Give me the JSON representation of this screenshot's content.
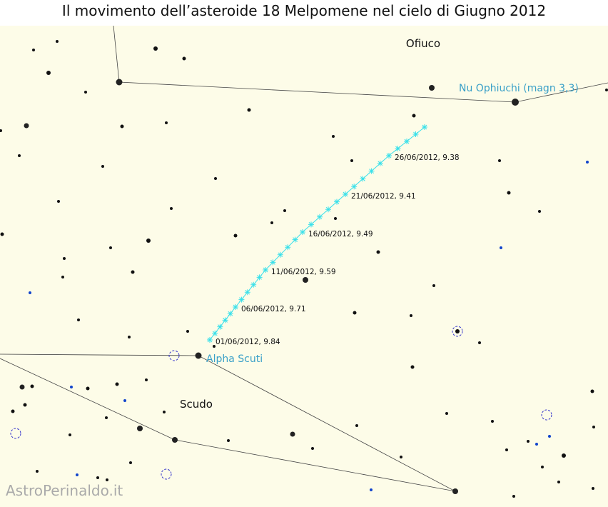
{
  "title": "Il movimento dell’asteroide 18 Melpomene nel cielo di Giugno 2012",
  "constellations": [
    "Ofiuco",
    "Scudo"
  ],
  "stars": [
    "Nu Ophiuchi (magn 3,3)",
    "Alpha Scuti"
  ],
  "track_labels": [
    "01/06/2012, 9.84",
    "06/06/2012, 9.71",
    "11/06/2012, 9.59",
    "16/06/2012, 9.49",
    "21/06/2012, 9.41",
    "26/06/2012, 9.38"
  ],
  "watermark": "AstroPerinaldo.it"
}
